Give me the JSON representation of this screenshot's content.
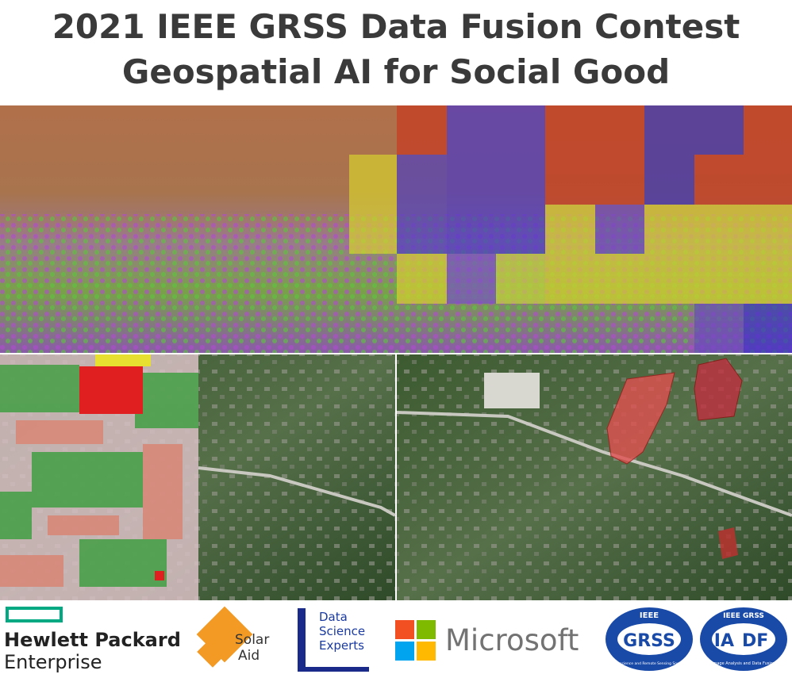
{
  "header": {
    "title_line1": "2021 IEEE GRSS Data Fusion Contest",
    "title_line2": "Geospatial AI for Social Good"
  },
  "sponsors": {
    "hpe": {
      "line1": "Hewlett Packard",
      "line2": "Enterprise"
    },
    "solar_aid": {
      "line1": "Solar",
      "line2": "Aid"
    },
    "dse": {
      "line1": "Data",
      "line2": "Science",
      "line3": "Experts"
    },
    "microsoft": {
      "name": "Microsoft"
    },
    "grss": {
      "top": "IEEE",
      "name": "GRSS",
      "bottom": "Geoscience and Remote Sensing Society"
    },
    "iadf": {
      "top": "IEEE GRSS",
      "left": "IA",
      "right": "DF",
      "bottom": "Image Analysis and Data Fusion"
    }
  }
}
